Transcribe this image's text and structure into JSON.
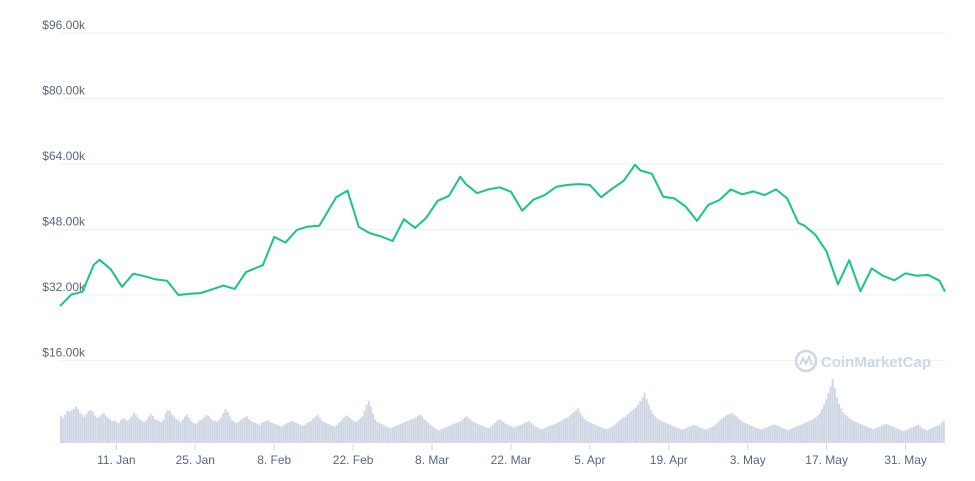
{
  "chart_data": {
    "type": "line",
    "yaxis": {
      "ticks": [
        16000,
        32000,
        48000,
        64000,
        80000,
        96000
      ],
      "tick_labels": [
        "$16.00k",
        "$32.00k",
        "$48.00k",
        "$64.00k",
        "$80.00k",
        "$96.00k"
      ],
      "range": [
        0,
        96000
      ]
    },
    "xaxis": {
      "start_date": "2021-01-01",
      "end_date": "2021-06-07",
      "tick_labels": [
        "11. Jan",
        "25. Jan",
        "8. Feb",
        "22. Feb",
        "8. Mar",
        "22. Mar",
        "5. Apr",
        "19. Apr",
        "3. May",
        "17. May",
        "31. May"
      ],
      "tick_dates": [
        "2021-01-11",
        "2021-01-25",
        "2021-02-08",
        "2021-02-22",
        "2021-03-08",
        "2021-03-22",
        "2021-04-05",
        "2021-04-19",
        "2021-05-03",
        "2021-05-17",
        "2021-05-31"
      ]
    },
    "grid": true,
    "series": [
      {
        "color": "#16c784",
        "x": [
          "2021-01-01",
          "2021-01-03",
          "2021-01-05",
          "2021-01-07",
          "2021-01-08",
          "2021-01-10",
          "2021-01-12",
          "2021-01-14",
          "2021-01-16",
          "2021-01-18",
          "2021-01-20",
          "2021-01-22",
          "2021-01-24",
          "2021-01-26",
          "2021-01-28",
          "2021-01-30",
          "2021-02-01",
          "2021-02-03",
          "2021-02-06",
          "2021-02-08",
          "2021-02-10",
          "2021-02-12",
          "2021-02-14",
          "2021-02-16",
          "2021-02-19",
          "2021-02-21",
          "2021-02-23",
          "2021-02-25",
          "2021-02-27",
          "2021-03-01",
          "2021-03-03",
          "2021-03-05",
          "2021-03-07",
          "2021-03-09",
          "2021-03-11",
          "2021-03-13",
          "2021-03-14",
          "2021-03-16",
          "2021-03-18",
          "2021-03-20",
          "2021-03-22",
          "2021-03-24",
          "2021-03-26",
          "2021-03-28",
          "2021-03-30",
          "2021-04-01",
          "2021-04-03",
          "2021-04-05",
          "2021-04-07",
          "2021-04-09",
          "2021-04-11",
          "2021-04-13",
          "2021-04-14",
          "2021-04-16",
          "2021-04-18",
          "2021-04-20",
          "2021-04-22",
          "2021-04-24",
          "2021-04-26",
          "2021-04-28",
          "2021-04-30",
          "2021-05-02",
          "2021-05-04",
          "2021-05-06",
          "2021-05-08",
          "2021-05-10",
          "2021-05-12",
          "2021-05-13",
          "2021-05-15",
          "2021-05-17",
          "2021-05-19",
          "2021-05-21",
          "2021-05-23",
          "2021-05-25",
          "2021-05-27",
          "2021-05-29",
          "2021-05-31",
          "2021-06-02",
          "2021-06-04",
          "2021-06-06",
          "2021-06-07"
        ],
        "values": [
          29300,
          32100,
          32800,
          39400,
          40600,
          38300,
          34000,
          37200,
          36600,
          35800,
          35500,
          32000,
          32300,
          32500,
          33400,
          34300,
          33500,
          37600,
          39300,
          46200,
          44800,
          47900,
          48700,
          48900,
          55900,
          57500,
          48600,
          47100,
          46300,
          45200,
          50500,
          48400,
          50900,
          55000,
          56200,
          60900,
          59100,
          56900,
          57800,
          58300,
          57200,
          52600,
          55300,
          56400,
          58400,
          58900,
          59100,
          58900,
          55900,
          58000,
          59900,
          63800,
          62400,
          61600,
          56000,
          55600,
          53600,
          50100,
          54000,
          55200,
          57800,
          56600,
          57300,
          56400,
          57800,
          55600,
          49600,
          49000,
          46700,
          42600,
          34600,
          40500,
          32900,
          38500,
          36700,
          35600,
          37300,
          36700,
          36900,
          35500,
          32800
        ]
      }
    ],
    "volume_series": {
      "color": "#cfd6e4",
      "values": [
        60,
        55,
        62,
        70,
        68,
        72,
        75,
        80,
        74,
        66,
        62,
        58,
        64,
        70,
        72,
        68,
        60,
        55,
        58,
        62,
        66,
        60,
        55,
        52,
        48,
        50,
        46,
        44,
        50,
        54,
        52,
        48,
        52,
        58,
        66,
        62,
        56,
        52,
        48,
        46,
        50,
        58,
        64,
        60,
        52,
        50,
        48,
        46,
        52,
        66,
        72,
        70,
        62,
        58,
        52,
        50,
        46,
        52,
        58,
        62,
        55,
        48,
        44,
        42,
        45,
        50,
        52,
        56,
        62,
        60,
        54,
        50,
        48,
        46,
        50,
        56,
        66,
        74,
        68,
        58,
        50,
        46,
        44,
        46,
        50,
        54,
        56,
        58,
        52,
        48,
        46,
        44,
        42,
        40,
        44,
        46,
        48,
        50,
        46,
        44,
        42,
        40,
        38,
        36,
        38,
        42,
        44,
        46,
        48,
        46,
        44,
        42,
        40,
        38,
        40,
        44,
        46,
        48,
        54,
        58,
        62,
        56,
        50,
        46,
        44,
        42,
        40,
        38,
        36,
        40,
        44,
        48,
        54,
        58,
        60,
        56,
        52,
        48,
        46,
        50,
        54,
        58,
        70,
        84,
        92,
        80,
        64,
        52,
        46,
        44,
        42,
        40,
        36,
        34,
        32,
        34,
        36,
        38,
        40,
        42,
        44,
        46,
        48,
        50,
        52,
        54,
        56,
        60,
        62,
        58,
        52,
        48,
        44,
        40,
        36,
        32,
        30,
        28,
        30,
        32,
        34,
        36,
        38,
        40,
        42,
        44,
        46,
        48,
        52,
        56,
        58,
        54,
        50,
        46,
        44,
        42,
        40,
        38,
        36,
        34,
        32,
        36,
        40,
        44,
        48,
        52,
        50,
        46,
        42,
        40,
        38,
        36,
        34,
        36,
        38,
        40,
        42,
        44,
        46,
        48,
        44,
        40,
        36,
        34,
        32,
        30,
        32,
        34,
        36,
        38,
        40,
        42,
        44,
        46,
        48,
        52,
        54,
        56,
        60,
        64,
        68,
        72,
        76,
        66,
        58,
        52,
        48,
        46,
        44,
        42,
        40,
        38,
        36,
        34,
        32,
        30,
        32,
        34,
        36,
        40,
        44,
        48,
        52,
        56,
        58,
        62,
        66,
        70,
        74,
        78,
        84,
        92,
        100,
        110,
        96,
        84,
        72,
        64,
        58,
        54,
        50,
        48,
        46,
        44,
        42,
        40,
        38,
        36,
        34,
        32,
        30,
        30,
        32,
        34,
        36,
        38,
        40,
        38,
        36,
        34,
        32,
        30,
        30,
        32,
        34,
        36,
        40,
        44,
        48,
        52,
        56,
        60,
        62,
        64,
        66,
        62,
        58,
        54,
        50,
        46,
        44,
        42,
        40,
        38,
        36,
        34,
        32,
        30,
        30,
        32,
        34,
        36,
        38,
        40,
        40,
        38,
        36,
        34,
        32,
        30,
        28,
        30,
        32,
        34,
        36,
        38,
        40,
        42,
        44,
        46,
        48,
        50,
        52,
        56,
        60,
        66,
        74,
        84,
        96,
        110,
        124,
        140,
        120,
        100,
        86,
        76,
        68,
        62,
        58,
        54,
        50,
        48,
        46,
        44,
        42,
        40,
        38,
        36,
        34,
        32,
        30,
        32,
        34,
        36,
        38,
        40,
        42,
        40,
        38,
        36,
        34,
        32,
        30,
        28,
        26,
        28,
        30,
        32,
        34,
        36,
        38,
        40,
        36,
        32,
        30,
        28,
        30,
        32,
        34,
        36,
        38,
        40,
        44,
        48
      ]
    },
    "watermark": "CoinMarketCap"
  }
}
